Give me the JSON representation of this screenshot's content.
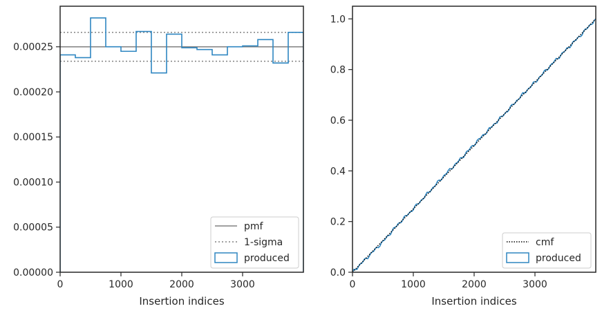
{
  "chart_data": [
    {
      "type": "histogram",
      "xlabel": "Insertion indices",
      "ylabel": "",
      "xlim": [
        0,
        4000
      ],
      "ylim": [
        0,
        0.000295
      ],
      "xticks": [
        0,
        1000,
        2000,
        3000
      ],
      "xtick_labels": [
        "0",
        "1000",
        "2000",
        "3000"
      ],
      "yticks": [
        0,
        5e-05,
        0.0001,
        0.00015,
        0.0002,
        0.00025
      ],
      "ytick_labels": [
        "0.00000",
        "0.00005",
        "0.00010",
        "0.00015",
        "0.00020",
        "0.00025"
      ],
      "bin_edges": [
        0,
        250,
        500,
        750,
        1000,
        1250,
        1500,
        1750,
        2000,
        2250,
        2500,
        2750,
        3000,
        3250,
        3500,
        3750,
        4000
      ],
      "values": [
        0.000241,
        0.000238,
        0.000282,
        0.00025,
        0.000245,
        0.000267,
        0.000221,
        0.000264,
        0.000249,
        0.000247,
        0.000241,
        0.00025,
        0.000251,
        0.000258,
        0.000232,
        0.000266
      ],
      "pmf": 0.00025,
      "sigma_band": [
        0.000234,
        0.000266
      ],
      "legend": [
        "pmf",
        "1-sigma",
        "produced"
      ],
      "legend_position": "lower-right",
      "colors": {
        "pmf": "#808080",
        "sigma": "#808080",
        "produced": "#2e86c1"
      }
    },
    {
      "type": "line",
      "xlabel": "Insertion indices",
      "ylabel": "",
      "xlim": [
        0,
        4000
      ],
      "ylim": [
        0,
        1.05
      ],
      "xticks": [
        0,
        1000,
        2000,
        3000
      ],
      "xtick_labels": [
        "0",
        "1000",
        "2000",
        "3000"
      ],
      "yticks": [
        0,
        0.2,
        0.4,
        0.6,
        0.8,
        1.0
      ],
      "ytick_labels": [
        "0.0",
        "0.2",
        "0.4",
        "0.6",
        "0.8",
        "1.0"
      ],
      "series": [
        {
          "name": "cmf",
          "x": [
            0,
            4000
          ],
          "y": [
            0,
            1.0
          ]
        },
        {
          "name": "produced",
          "x": [
            0,
            250,
            500,
            750,
            1000,
            1250,
            1500,
            1750,
            2000,
            2250,
            2500,
            2750,
            3000,
            3250,
            3500,
            3750,
            4000
          ],
          "y": [
            0,
            0.06,
            0.12,
            0.19,
            0.25,
            0.315,
            0.38,
            0.44,
            0.505,
            0.565,
            0.625,
            0.69,
            0.75,
            0.815,
            0.875,
            0.935,
            1.0
          ]
        }
      ],
      "legend": [
        "cmf",
        "produced"
      ],
      "legend_position": "lower-right",
      "colors": {
        "cmf": "#000000",
        "produced": "#2e86c1"
      }
    }
  ]
}
